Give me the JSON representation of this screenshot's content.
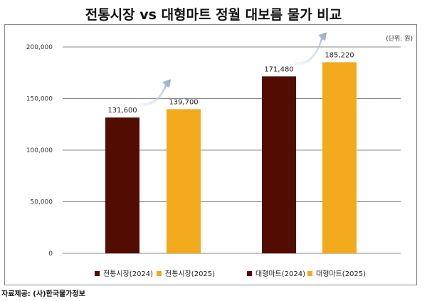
{
  "chart_data": {
    "type": "bar",
    "title": "전통시장 vs 대형마트 정월 대보름 물가 비교",
    "unit": "(단위: 원)",
    "source": "자료제공: (사)한국물가정보",
    "ylim": [
      0,
      200000
    ],
    "yticks": [
      "0",
      "50,000",
      "100,000",
      "150,000",
      "200,000"
    ],
    "grid": true,
    "legend_position": "bottom",
    "series": [
      {
        "name": "전통시장(2024)",
        "value": 131600,
        "label": "131,600",
        "color": "#520c02"
      },
      {
        "name": "전통시장(2025)",
        "value": 139700,
        "label": "139,700",
        "color": "#f2a91c"
      },
      {
        "name": "대형마트(2024)",
        "value": 171480,
        "label": "171,480",
        "color": "#520c02"
      },
      {
        "name": "대형마트(2025)",
        "value": 185220,
        "label": "185,220",
        "color": "#f2a91c"
      }
    ]
  }
}
